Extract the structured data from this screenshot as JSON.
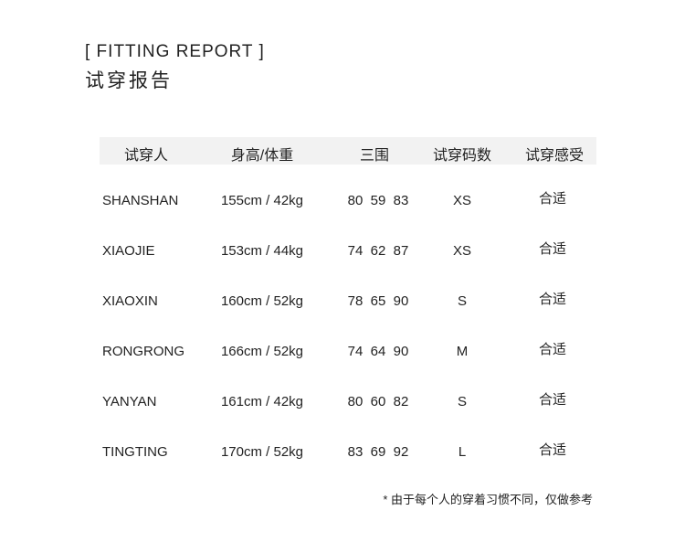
{
  "title_en": "[ FITTING REPORT ]",
  "title_cn": "试穿报告",
  "columns": [
    "试穿人",
    "身高/体重",
    "三围",
    "试穿码数",
    "试穿感受"
  ],
  "rows": [
    {
      "name": "SHANSHAN",
      "height_weight": "155cm / 42kg",
      "measurements": "80  59  83",
      "size": "XS",
      "feel": "合适"
    },
    {
      "name": "XIAOJIE",
      "height_weight": "153cm / 44kg",
      "measurements": "74  62  87",
      "size": "XS",
      "feel": "合适"
    },
    {
      "name": "XIAOXIN",
      "height_weight": "160cm / 52kg",
      "measurements": "78  65  90",
      "size": "S",
      "feel": "合适"
    },
    {
      "name": "RONGRONG",
      "height_weight": "166cm / 52kg",
      "measurements": "74  64  90",
      "size": "M",
      "feel": "合适"
    },
    {
      "name": "YANYAN",
      "height_weight": "161cm / 42kg",
      "measurements": "80  60  82",
      "size": "S",
      "feel": "合适"
    },
    {
      "name": "TINGTING",
      "height_weight": "170cm / 52kg",
      "measurements": "83  69  92",
      "size": "L",
      "feel": "合适"
    }
  ],
  "note": "* 由于每个人的穿着习惯不同，仅做参考"
}
